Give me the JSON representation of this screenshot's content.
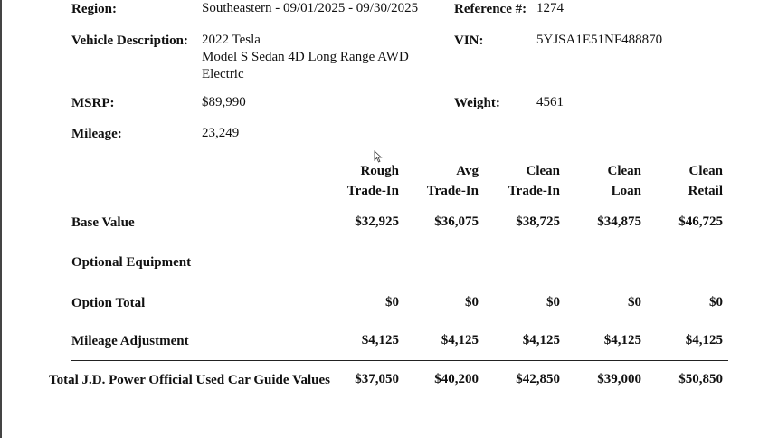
{
  "left_fields": [
    {
      "label": "Region:",
      "lines": [
        "Southeastern - 09/01/2025 - 09/30/2025"
      ]
    },
    {
      "label": "Vehicle Description:",
      "lines": [
        "2022 Tesla",
        "Model S Sedan 4D Long Range AWD",
        "Electric"
      ]
    },
    {
      "label": "MSRP:",
      "lines": [
        "$89,990"
      ]
    },
    {
      "label": "Mileage:",
      "lines": [
        "23,249"
      ]
    }
  ],
  "right_fields": [
    {
      "label": "Reference #:",
      "value": "1274"
    },
    {
      "label": "VIN:",
      "value": "5YJSA1E51NF488870"
    },
    {
      "label": "Weight:",
      "value": "4561"
    }
  ],
  "table": {
    "columns": [
      [
        "Rough",
        "Trade-In"
      ],
      [
        "Avg",
        "Trade-In"
      ],
      [
        "Clean",
        "Trade-In"
      ],
      [
        "Clean",
        "Loan"
      ],
      [
        "Clean",
        "Retail"
      ]
    ],
    "rows": [
      {
        "label": "Base Value",
        "values": [
          "$32,925",
          "$36,075",
          "$38,725",
          "$34,875",
          "$46,725"
        ]
      },
      {
        "label": "Optional Equipment",
        "values": []
      },
      {
        "label": "Option Total",
        "values": [
          "$0",
          "$0",
          "$0",
          "$0",
          "$0"
        ]
      },
      {
        "label": "Mileage Adjustment",
        "values": [
          "$4,125",
          "$4,125",
          "$4,125",
          "$4,125",
          "$4,125"
        ]
      }
    ],
    "total": {
      "label": "Total J.D. Power Official Used Car Guide Values",
      "values": [
        "$37,050",
        "$40,200",
        "$42,850",
        "$39,000",
        "$50,850"
      ]
    }
  }
}
